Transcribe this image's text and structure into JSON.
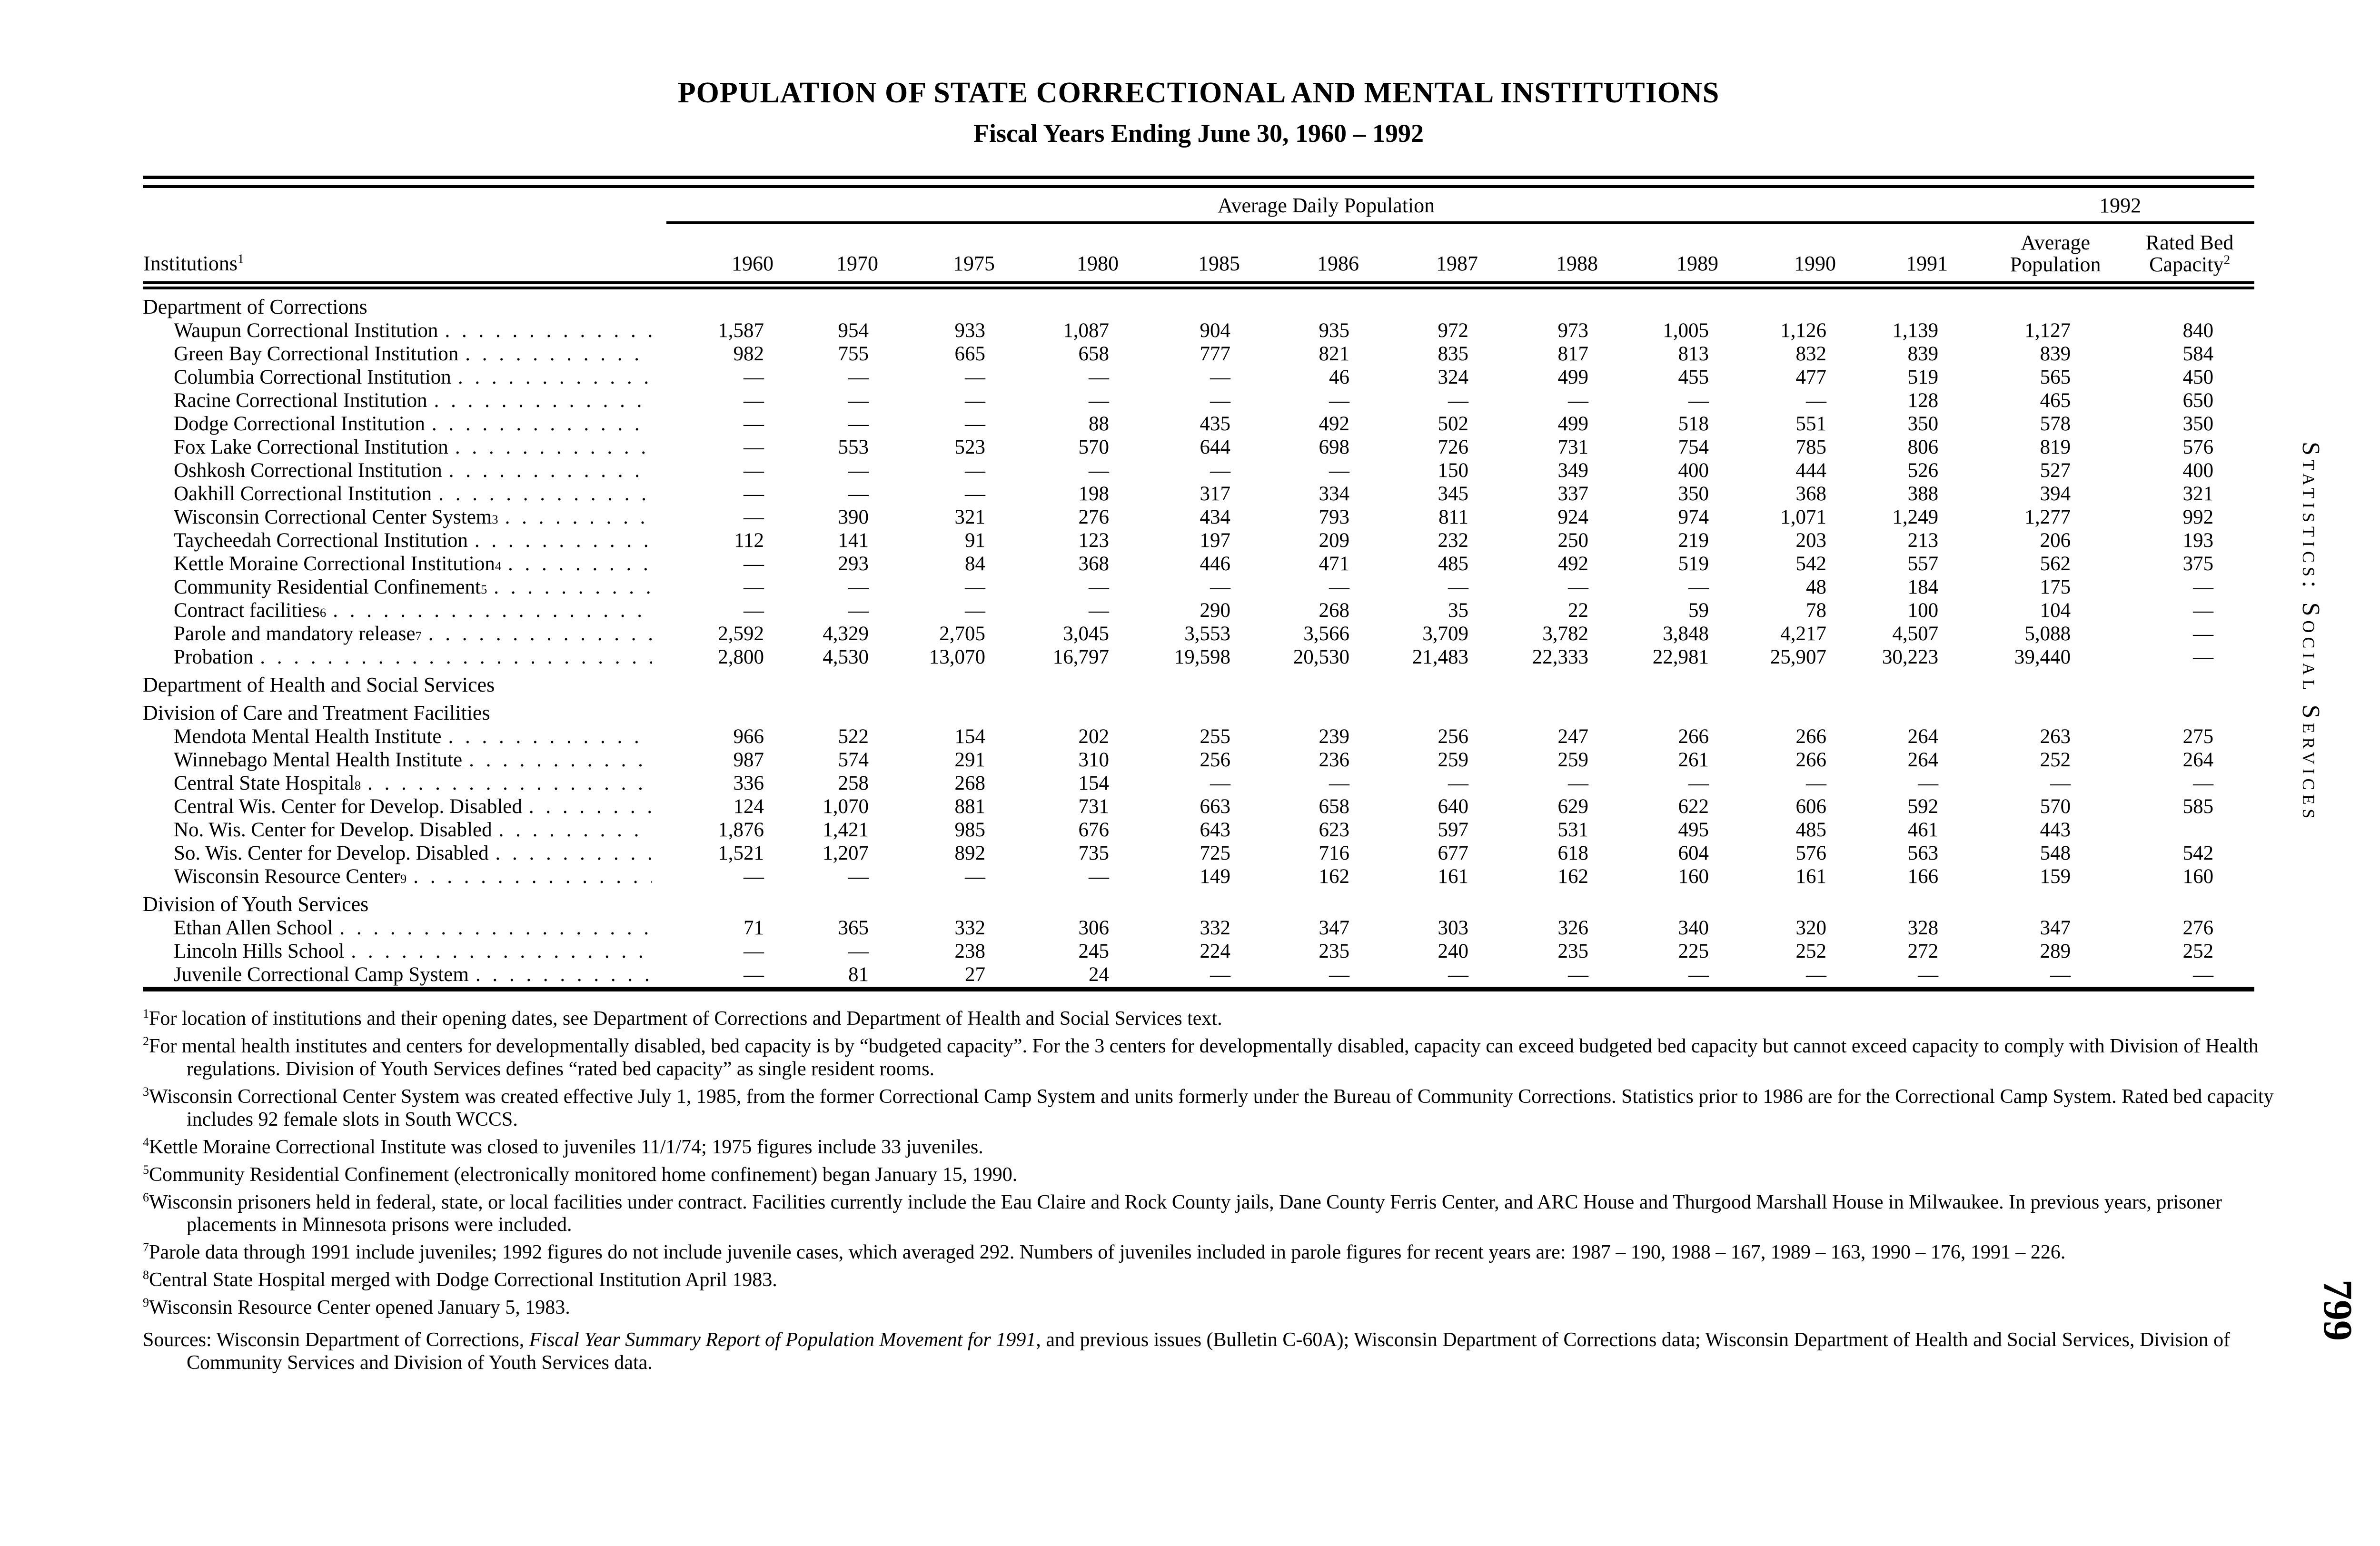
{
  "title": {
    "line1": "POPULATION OF STATE CORRECTIONAL AND MENTAL INSTITUTIONS",
    "line2": "Fiscal Years Ending June 30, 1960 – 1992"
  },
  "margin": {
    "section_label": "Statistics: Social Services",
    "page_number": "799"
  },
  "table": {
    "header": {
      "institutions": "Institutions",
      "institutions_sup": "1",
      "adp_group": "Average Daily Population",
      "group_1992": "1992",
      "years": [
        "1960",
        "1970",
        "1975",
        "1980",
        "1985",
        "1986",
        "1987",
        "1988",
        "1989",
        "1990",
        "1991"
      ],
      "avg_line1": "Average",
      "avg_line2": "Population",
      "cap_line1": "Rated Bed",
      "cap_line2": "Capacity",
      "cap_sup": "2"
    },
    "rows": [
      {
        "label": "Department of Corrections",
        "section": true
      },
      {
        "label": "Waupun Correctional Institution",
        "sup": "",
        "values": [
          "1,587",
          "954",
          "933",
          "1,087",
          "904",
          "935",
          "972",
          "973",
          "1,005",
          "1,126",
          "1,139"
        ],
        "avg": "1,127",
        "cap": "840"
      },
      {
        "label": "Green Bay Correctional Institution",
        "sup": "",
        "values": [
          "982",
          "755",
          "665",
          "658",
          "777",
          "821",
          "835",
          "817",
          "813",
          "832",
          "839"
        ],
        "avg": "839",
        "cap": "584"
      },
      {
        "label": "Columbia Correctional Institution",
        "sup": "",
        "values": [
          "—",
          "—",
          "—",
          "—",
          "—",
          "46",
          "324",
          "499",
          "455",
          "477",
          "519"
        ],
        "avg": "565",
        "cap": "450"
      },
      {
        "label": "Racine Correctional Institution",
        "sup": "",
        "values": [
          "—",
          "—",
          "—",
          "—",
          "—",
          "—",
          "—",
          "—",
          "—",
          "—",
          "128"
        ],
        "avg": "465",
        "cap": "650"
      },
      {
        "label": "Dodge Correctional Institution",
        "sup": "",
        "values": [
          "—",
          "—",
          "—",
          "88",
          "435",
          "492",
          "502",
          "499",
          "518",
          "551",
          "350"
        ],
        "avg": "578",
        "cap": "350"
      },
      {
        "label": "Fox Lake Correctional Institution",
        "sup": "",
        "values": [
          "—",
          "553",
          "523",
          "570",
          "644",
          "698",
          "726",
          "731",
          "754",
          "785",
          "806"
        ],
        "avg": "819",
        "cap": "576"
      },
      {
        "label": "Oshkosh Correctional Institution",
        "sup": "",
        "values": [
          "—",
          "—",
          "—",
          "—",
          "—",
          "—",
          "150",
          "349",
          "400",
          "444",
          "526"
        ],
        "avg": "527",
        "cap": "400"
      },
      {
        "label": "Oakhill Correctional Institution",
        "sup": "",
        "values": [
          "—",
          "—",
          "—",
          "198",
          "317",
          "334",
          "345",
          "337",
          "350",
          "368",
          "388"
        ],
        "avg": "394",
        "cap": "321"
      },
      {
        "label": "Wisconsin Correctional Center System",
        "sup": "3",
        "values": [
          "—",
          "390",
          "321",
          "276",
          "434",
          "793",
          "811",
          "924",
          "974",
          "1,071",
          "1,249"
        ],
        "avg": "1,277",
        "cap": "992"
      },
      {
        "label": "Taycheedah Correctional Institution",
        "sup": "",
        "values": [
          "112",
          "141",
          "91",
          "123",
          "197",
          "209",
          "232",
          "250",
          "219",
          "203",
          "213"
        ],
        "avg": "206",
        "cap": "193"
      },
      {
        "label": "Kettle Moraine Correctional Institution",
        "sup": "4",
        "values": [
          "—",
          "293",
          "84",
          "368",
          "446",
          "471",
          "485",
          "492",
          "519",
          "542",
          "557"
        ],
        "avg": "562",
        "cap": "375"
      },
      {
        "label": "Community Residential Confinement",
        "sup": "5",
        "values": [
          "—",
          "—",
          "—",
          "—",
          "—",
          "—",
          "—",
          "—",
          "—",
          "48",
          "184"
        ],
        "avg": "175",
        "cap": "—"
      },
      {
        "label": "Contract facilities",
        "sup": "6",
        "values": [
          "—",
          "—",
          "—",
          "—",
          "290",
          "268",
          "35",
          "22",
          "59",
          "78",
          "100"
        ],
        "avg": "104",
        "cap": "—"
      },
      {
        "label": "Parole and mandatory release",
        "sup": "7",
        "values": [
          "2,592",
          "4,329",
          "2,705",
          "3,045",
          "3,553",
          "3,566",
          "3,709",
          "3,782",
          "3,848",
          "4,217",
          "4,507"
        ],
        "avg": "5,088",
        "cap": "—"
      },
      {
        "label": "Probation",
        "sup": "",
        "values": [
          "2,800",
          "4,530",
          "13,070",
          "16,797",
          "19,598",
          "20,530",
          "21,483",
          "22,333",
          "22,981",
          "25,907",
          "30,223"
        ],
        "avg": "39,440",
        "cap": "—"
      },
      {
        "label": "Department of Health and Social Services",
        "section": true
      },
      {
        "label": "Division of Care and Treatment Facilities",
        "section": true
      },
      {
        "label": "Mendota Mental Health Institute",
        "sup": "",
        "values": [
          "966",
          "522",
          "154",
          "202",
          "255",
          "239",
          "256",
          "247",
          "266",
          "266",
          "264"
        ],
        "avg": "263",
        "cap": "275"
      },
      {
        "label": "Winnebago Mental Health Institute",
        "sup": "",
        "values": [
          "987",
          "574",
          "291",
          "310",
          "256",
          "236",
          "259",
          "259",
          "261",
          "266",
          "264"
        ],
        "avg": "252",
        "cap": "264"
      },
      {
        "label": "Central State Hospital",
        "sup": "8",
        "values": [
          "336",
          "258",
          "268",
          "154",
          "—",
          "—",
          "—",
          "—",
          "—",
          "—",
          "—"
        ],
        "avg": "—",
        "cap": "—"
      },
      {
        "label": "Central Wis. Center for Develop. Disabled",
        "sup": "",
        "values": [
          "124",
          "1,070",
          "881",
          "731",
          "663",
          "658",
          "640",
          "629",
          "622",
          "606",
          "592"
        ],
        "avg": "570",
        "cap": "585"
      },
      {
        "label": "No. Wis. Center for Develop. Disabled",
        "sup": "",
        "values": [
          "1,876",
          "1,421",
          "985",
          "676",
          "643",
          "623",
          "597",
          "531",
          "495",
          "485",
          "461"
        ],
        "avg": "443",
        "cap": ""
      },
      {
        "label": "So. Wis. Center for Develop. Disabled",
        "sup": "",
        "values": [
          "1,521",
          "1,207",
          "892",
          "735",
          "725",
          "716",
          "677",
          "618",
          "604",
          "576",
          "563"
        ],
        "avg": "548",
        "cap": "542"
      },
      {
        "label": "Wisconsin Resource Center",
        "sup": "9",
        "values": [
          "—",
          "—",
          "—",
          "—",
          "149",
          "162",
          "161",
          "162",
          "160",
          "161",
          "166"
        ],
        "avg": "159",
        "cap": "160"
      },
      {
        "label": "Division of Youth Services",
        "section": true
      },
      {
        "label": "Ethan Allen School",
        "sup": "",
        "values": [
          "71",
          "365",
          "332",
          "306",
          "332",
          "347",
          "303",
          "326",
          "340",
          "320",
          "328"
        ],
        "avg": "347",
        "cap": "276"
      },
      {
        "label": "Lincoln Hills School",
        "sup": "",
        "values": [
          "—",
          "—",
          "238",
          "245",
          "224",
          "235",
          "240",
          "235",
          "225",
          "252",
          "272"
        ],
        "avg": "289",
        "cap": "252"
      },
      {
        "label": "Juvenile Correctional Camp System",
        "sup": "",
        "values": [
          "—",
          "81",
          "27",
          "24",
          "—",
          "—",
          "—",
          "—",
          "—",
          "—",
          "—"
        ],
        "avg": "—",
        "cap": "—"
      }
    ]
  },
  "footnotes": [
    {
      "sup": "1",
      "text": "For location of institutions and their opening dates, see Department of Corrections and Department of Health and Social Services text."
    },
    {
      "sup": "2",
      "text": "For mental health institutes and centers for developmentally disabled, bed capacity is by “budgeted capacity”.  For the 3 centers for developmentally disabled, capacity can exceed budgeted bed capacity but cannot exceed capacity to comply with Division of Health regulations.  Division of Youth Services defines “rated bed capacity” as single resident rooms."
    },
    {
      "sup": "3",
      "text": "Wisconsin Correctional Center System was created effective July 1, 1985, from the former Correctional Camp System and units formerly under the Bureau of Community Corrections.  Statistics prior to 1986 are for the Correctional Camp System.  Rated bed capacity includes 92 female slots in South WCCS."
    },
    {
      "sup": "4",
      "text": "Kettle Moraine Correctional Institute was closed to juveniles 11/1/74; 1975 figures include 33 juveniles."
    },
    {
      "sup": "5",
      "text": "Community Residential Confinement (electronically monitored home confinement) began January 15, 1990."
    },
    {
      "sup": "6",
      "text": "Wisconsin prisoners held in federal, state, or local facilities under contract.  Facilities currently include the Eau Claire and Rock County jails, Dane County Ferris Center, and ARC House and Thurgood Marshall House in Milwaukee.  In previous years, prisoner placements in Minnesota prisons were included."
    },
    {
      "sup": "7",
      "text": "Parole data through 1991 include juveniles; 1992 figures do not include juvenile cases, which averaged 292.  Numbers of juveniles included in parole figures for recent years are: 1987 – 190, 1988 – 167, 1989 – 163, 1990 – 176, 1991 – 226."
    },
    {
      "sup": "8",
      "text": "Central State Hospital merged with Dodge Correctional Institution April 1983."
    },
    {
      "sup": "9",
      "text": "Wisconsin Resource Center opened January 5, 1983."
    }
  ],
  "sources": {
    "label": "Sources:",
    "pre": " Wisconsin Department of Corrections, ",
    "italic": "Fiscal Year Summary Report of Population Movement for 1991",
    "post": ", and previous issues (Bulletin C-60A); Wisconsin Department of Corrections data; Wisconsin Department of Health and Social Services, Division of Community Services and Division of Youth Services data."
  }
}
